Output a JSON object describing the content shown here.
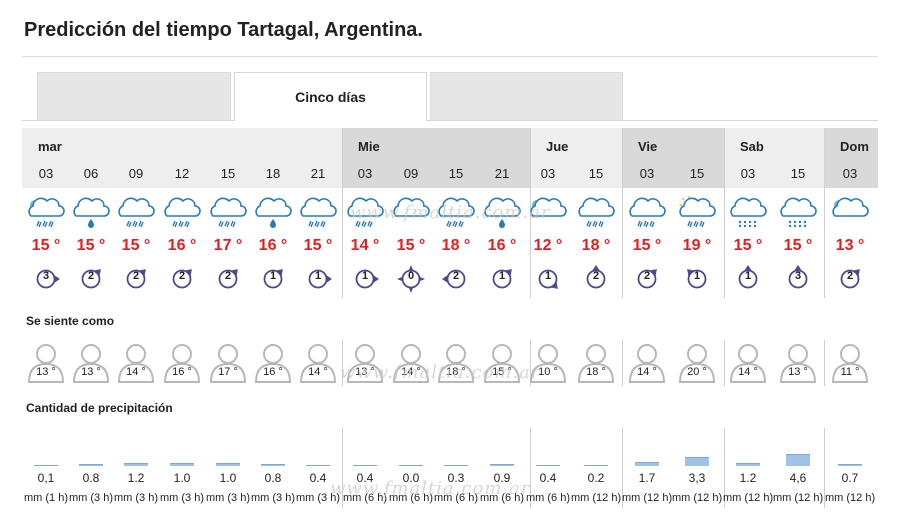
{
  "title": "Predicción del tiempo Tartagal, Argentina.",
  "tabs": [
    {
      "label": "",
      "active": false
    },
    {
      "label": "Cinco días",
      "active": true
    },
    {
      "label": "",
      "active": false
    }
  ],
  "days": [
    {
      "name": "mar",
      "span": 7
    },
    {
      "name": "Mie",
      "span": 4
    },
    {
      "name": "Jue",
      "span": 2
    },
    {
      "name": "Vie",
      "span": 2
    },
    {
      "name": "Sab",
      "span": 2
    },
    {
      "name": "Dom",
      "span": 1
    }
  ],
  "periods": [
    {
      "hour": "03",
      "icon": "night-cloud-rain-icon",
      "temp": "15 °",
      "wind": "3",
      "wind_dir": "east",
      "feels": "13 °",
      "precip": "0,1",
      "precip_unit": "mm (1 h)",
      "precip_amount": 0.1
    },
    {
      "hour": "06",
      "icon": "cloud-drizzle-icon",
      "temp": "15 °",
      "wind": "2",
      "wind_dir": "north-east",
      "feels": "13 °",
      "precip": "0.8",
      "precip_unit": "mm (3 h)",
      "precip_amount": 0.8
    },
    {
      "hour": "09",
      "icon": "cloud-rain-icon",
      "temp": "15 °",
      "wind": "2",
      "wind_dir": "north-east",
      "feels": "14 °",
      "precip": "1.2",
      "precip_unit": "mm (3 h)",
      "precip_amount": 1.2
    },
    {
      "hour": "12",
      "icon": "cloud-rain-icon",
      "temp": "16 °",
      "wind": "2",
      "wind_dir": "north-east",
      "feels": "16 °",
      "precip": "1.0",
      "precip_unit": "mm (3 h)",
      "precip_amount": 1.0
    },
    {
      "hour": "15",
      "icon": "cloud-rain-icon",
      "temp": "17 °",
      "wind": "2",
      "wind_dir": "north-east",
      "feels": "17 °",
      "precip": "1.0",
      "precip_unit": "mm (3 h)",
      "precip_amount": 1.0
    },
    {
      "hour": "18",
      "icon": "cloud-drizzle-icon",
      "temp": "16 °",
      "wind": "1",
      "wind_dir": "north-east",
      "feels": "16 °",
      "precip": "0.8",
      "precip_unit": "mm (3 h)",
      "precip_amount": 0.8
    },
    {
      "hour": "21",
      "icon": "cloud-rain-icon",
      "temp": "15 °",
      "wind": "1",
      "wind_dir": "east",
      "feels": "14 °",
      "precip": "0.4",
      "precip_unit": "mm (3 h)",
      "precip_amount": 0.4
    },
    {
      "hour": "03",
      "icon": "cloud-rain-icon",
      "temp": "14 °",
      "wind": "1",
      "wind_dir": "east",
      "feels": "13 °",
      "precip": "0.4",
      "precip_unit": "mm (6 h)",
      "precip_amount": 0.4
    },
    {
      "hour": "09",
      "icon": "cloud-icon",
      "temp": "15 °",
      "wind": "0",
      "wind_dir": "calm",
      "feels": "14 °",
      "precip": "0.0",
      "precip_unit": "mm (6 h)",
      "precip_amount": 0.0
    },
    {
      "hour": "15",
      "icon": "cloud-rain-icon",
      "temp": "18 °",
      "wind": "2",
      "wind_dir": "west",
      "feels": "18 °",
      "precip": "0.3",
      "precip_unit": "mm (6 h)",
      "precip_amount": 0.3
    },
    {
      "hour": "21",
      "icon": "cloud-drizzle-icon",
      "temp": "16 °",
      "wind": "1",
      "wind_dir": "north-east",
      "feels": "15 °",
      "precip": "0.9",
      "precip_unit": "mm (6 h)",
      "precip_amount": 0.9
    },
    {
      "hour": "03",
      "icon": "night-cloud-icon",
      "temp": "12 °",
      "wind": "1",
      "wind_dir": "south-east",
      "feels": "10 °",
      "precip": "0.4",
      "precip_unit": "mm (6 h)",
      "precip_amount": 0.4
    },
    {
      "hour": "15",
      "icon": "cloud-rain-icon",
      "temp": "18 °",
      "wind": "2",
      "wind_dir": "north",
      "feels": "18 °",
      "precip": "0.2",
      "precip_unit": "mm (12 h)",
      "precip_amount": 0.2
    },
    {
      "hour": "03",
      "icon": "cloud-rain-icon",
      "temp": "15 °",
      "wind": "2",
      "wind_dir": "north-east",
      "feels": "14 °",
      "precip": "1.7",
      "precip_unit": "mm (12 h)",
      "precip_amount": 1.7
    },
    {
      "hour": "15",
      "icon": "sun-cloud-rain-icon",
      "temp": "19 °",
      "wind": "1",
      "wind_dir": "north-west",
      "feels": "20 °",
      "precip": "3,3",
      "precip_unit": "mm (12 h)",
      "precip_amount": 3.3
    },
    {
      "hour": "03",
      "icon": "cloud-snow-icon",
      "temp": "15 °",
      "wind": "1",
      "wind_dir": "north",
      "feels": "14 °",
      "precip": "1.2",
      "precip_unit": "mm (12 h)",
      "precip_amount": 1.2
    },
    {
      "hour": "15",
      "icon": "cloud-snow-icon",
      "temp": "15 °",
      "wind": "3",
      "wind_dir": "north",
      "feels": "13 °",
      "precip": "4,6",
      "precip_unit": "mm (12 h)",
      "precip_amount": 4.6
    },
    {
      "hour": "03",
      "icon": "night-cloud-icon",
      "temp": "13 °",
      "wind": "2",
      "wind_dir": "north-east",
      "feels": "11 °",
      "precip": "0.7",
      "precip_unit": "mm (12 h)",
      "precip_amount": 0.7
    }
  ],
  "sections": {
    "feels_like": "Se siente como",
    "precipitation": "Cantidad de precipitación"
  },
  "watermark": "www.fmaltia.com.ar",
  "colors": {
    "temp": "#e02020",
    "wind_icon": "#4a4a8c",
    "precip_bar": "#9ec3e6",
    "icon_stroke": "#2a7ab8",
    "rain": "#2a7ab8",
    "sun": "#f0a500",
    "moon": "#6fb6e8"
  }
}
